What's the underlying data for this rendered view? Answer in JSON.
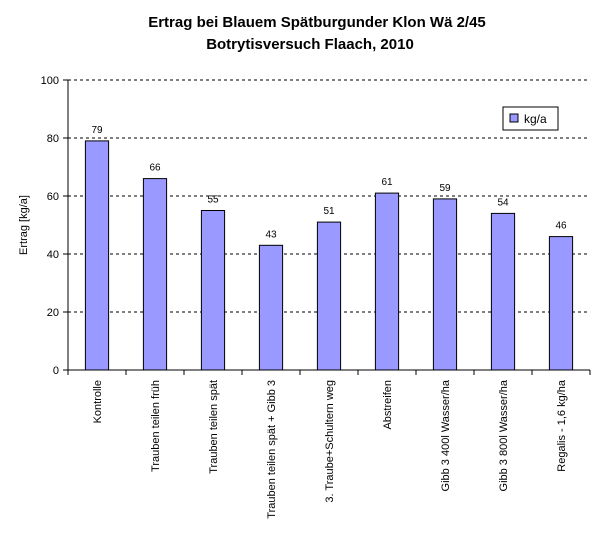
{
  "chart_data": {
    "type": "bar",
    "title": "Ertrag bei Blauem Spätburgunder Klon Wä 2/45",
    "subtitle": "Botrytisversuch Flaach, 2010",
    "xlabel": "",
    "ylabel": "Ertrag [kg/a]",
    "ylim": [
      0,
      100
    ],
    "yticks": [
      0,
      20,
      40,
      60,
      80,
      100
    ],
    "grid": true,
    "legend_position": "top-right",
    "categories": [
      "Kontrolle",
      "Trauben teilen früh",
      "Trauben teilen spät",
      "Trauben teilen spät + Gibb 3",
      "3. Traube+Schultern weg",
      "Abstreifen",
      "Gibb 3 400l Wasser/ha",
      "Gibb 3 800l Wasser/ha",
      "Regalis - 1,6 kg/ha"
    ],
    "series": [
      {
        "name": "kg/a",
        "color": "#9999ff",
        "values": [
          79,
          66,
          55,
          43,
          51,
          61,
          59,
          54,
          46
        ]
      }
    ]
  }
}
